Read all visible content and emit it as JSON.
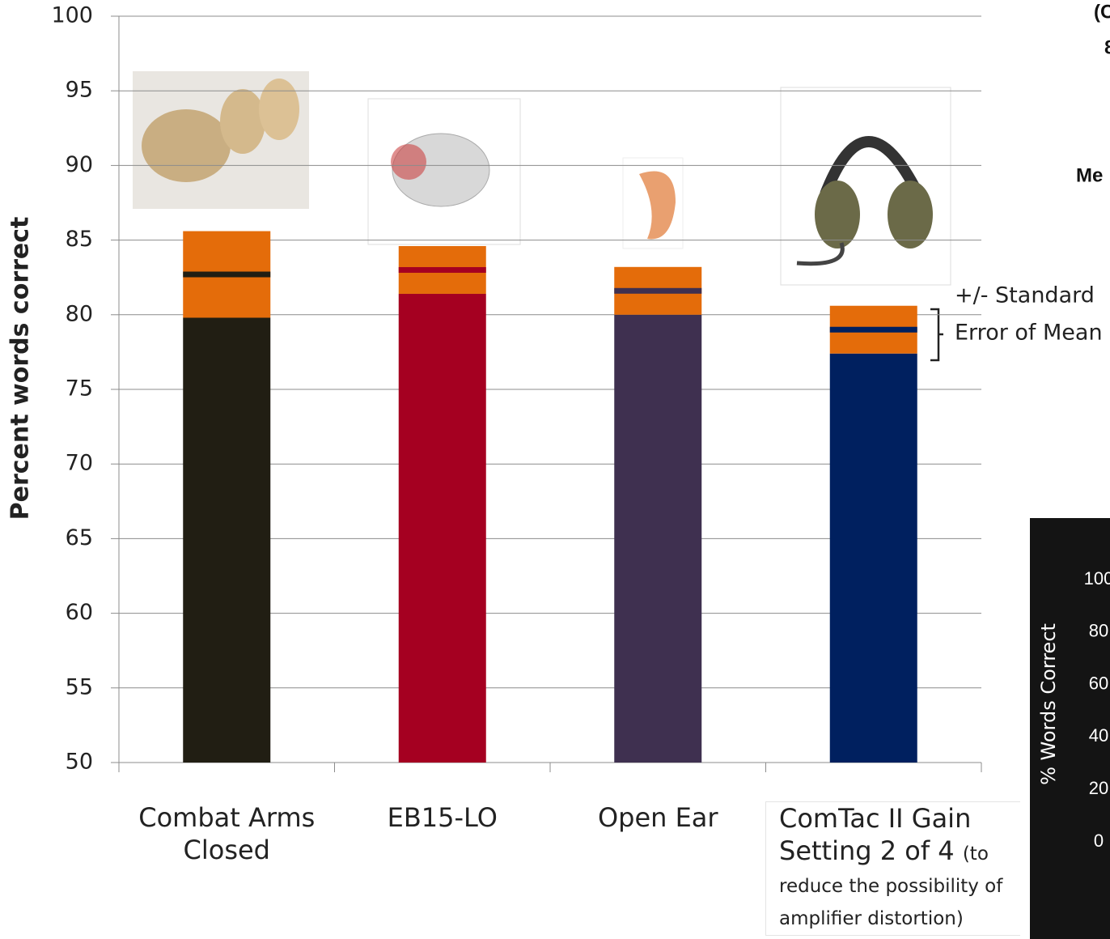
{
  "chart_data": [
    {
      "type": "errorbar-bar",
      "ylabel": "Percent words correct",
      "categories": [
        "Combat Arms Closed",
        "EB15-LO",
        "Open Ear",
        "ComTac II Gain Setting 2 of 4"
      ],
      "category_note": "(to reduce the possibility of amplifier distortion)",
      "values": [
        82.7,
        83.0,
        81.6,
        79.0
      ],
      "errors": [
        2.9,
        1.6,
        1.6,
        1.6
      ],
      "colors": [
        "#211e13",
        "#a50021",
        "#3f3050",
        "#00205f"
      ],
      "error_color": "#e46c0a",
      "ylim": [
        50,
        100
      ],
      "yticks": [
        50,
        55,
        60,
        65,
        70,
        75,
        80,
        85,
        90,
        95,
        100
      ],
      "grid": true,
      "annotation": [
        "+/- Standard",
        "Error of Mean"
      ]
    },
    {
      "type": "axis-panel",
      "ylabel": "% Words Correct",
      "ylim": [
        0,
        100
      ],
      "yticks": [
        0,
        20,
        40,
        60,
        80,
        100
      ]
    }
  ],
  "fragments": [
    "(C",
    "8",
    "Me"
  ]
}
